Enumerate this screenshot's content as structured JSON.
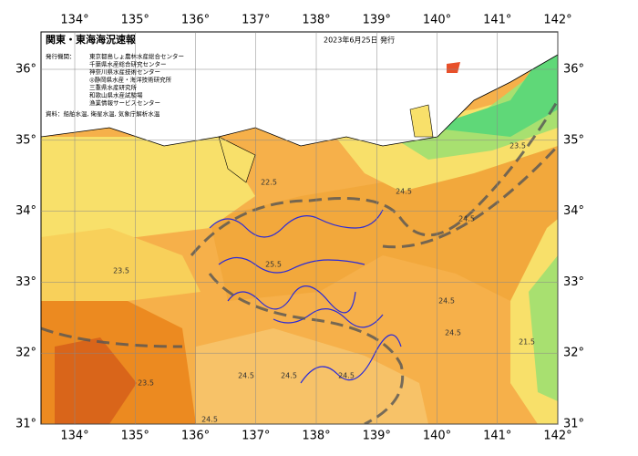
{
  "map": {
    "title": "関東・東海海況速報",
    "date": "2023年6月25日 発行",
    "issuers_label": "発行機関：",
    "issuers": [
      "東京都島しょ農林水産総合センター",
      "千葉県水産総合研究センター",
      "神奈川県水産技術センター",
      "◎静岡県水産・海洋技術研究所",
      "三重県水産研究所",
      "和歌山県水産試験場",
      "漁業情報サービスセンター"
    ],
    "source": "資料：船舶水温, 衛星水温, 気象庁解析水温",
    "lon_ticks": [
      {
        "value": 134,
        "label": "134°"
      },
      {
        "value": 135,
        "label": "135°"
      },
      {
        "value": 136,
        "label": "136°"
      },
      {
        "value": 137,
        "label": "137°"
      },
      {
        "value": 138,
        "label": "138°"
      },
      {
        "value": 139,
        "label": "139°"
      },
      {
        "value": 140,
        "label": "140°"
      },
      {
        "value": 141,
        "label": "141°"
      },
      {
        "value": 142,
        "label": "142°"
      }
    ],
    "lat_ticks": [
      {
        "value": 31,
        "label": "31°"
      },
      {
        "value": 32,
        "label": "32°"
      },
      {
        "value": 33,
        "label": "33°"
      },
      {
        "value": 34,
        "label": "34°"
      },
      {
        "value": 35,
        "label": "35°"
      },
      {
        "value": 36,
        "label": "36°"
      }
    ],
    "contour_labels": [
      22.5,
      23.5,
      24.5,
      24.5,
      24.5,
      24.5,
      24.5,
      24.5,
      24.5,
      23.5,
      21.5,
      25.5,
      24.5,
      23.5
    ]
  }
}
